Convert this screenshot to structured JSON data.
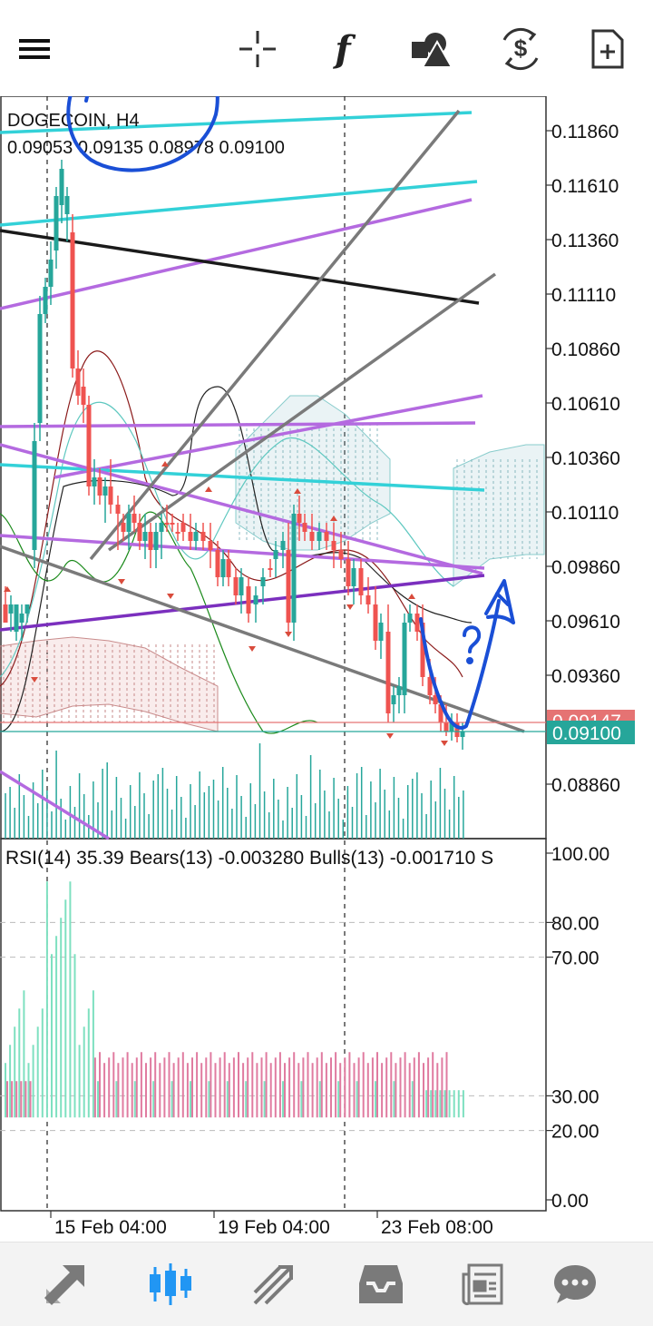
{
  "toolbar": {
    "icons": [
      "menu-icon",
      "crosshair-icon",
      "indicators-icon",
      "objects-icon",
      "timeframe-icon",
      "new-order-icon"
    ],
    "indicators_label": "f"
  },
  "main_chart": {
    "symbol_title": "DOGECOIN, H4",
    "ohlc": "0.09053 0.09135 0.08978 0.09100",
    "price_levels": [
      "0.11860",
      "0.11610",
      "0.11360",
      "0.11110",
      "0.10860",
      "0.10610",
      "0.10360",
      "0.10110",
      "0.09860",
      "0.09610",
      "0.09360",
      "0.08860"
    ],
    "ask_label": "0.09147",
    "bid_label": "0.09100",
    "colors": {
      "bull": "#26a69a",
      "bear": "#ef5350",
      "cyan_line": "#33d1d8",
      "purple_line": "#b46ae0",
      "dark_purple": "#7b2fbe",
      "gray_line": "#7a7a7a",
      "black_line": "#1a1a1a",
      "ask": "#e57373",
      "bid": "#26a69a",
      "pen": "#1a4fd6"
    }
  },
  "indicator_panel": {
    "title": "RSI(14) 35.39 Bears(13) -0.003280 Bulls(13) -0.001710 S",
    "levels": [
      "100.00",
      "80.00",
      "70.00",
      "30.00",
      "20.00",
      "0.00"
    ]
  },
  "time_axis": {
    "labels": [
      "15 Feb 04:00",
      "19 Feb 04:00",
      "23 Feb 08:00"
    ]
  },
  "bottom_nav": {
    "items": [
      "quotes",
      "chart",
      "trade",
      "history",
      "news",
      "messages"
    ],
    "active": "chart",
    "active_color": "#2196f3",
    "inactive_color": "#7a7a7a"
  }
}
